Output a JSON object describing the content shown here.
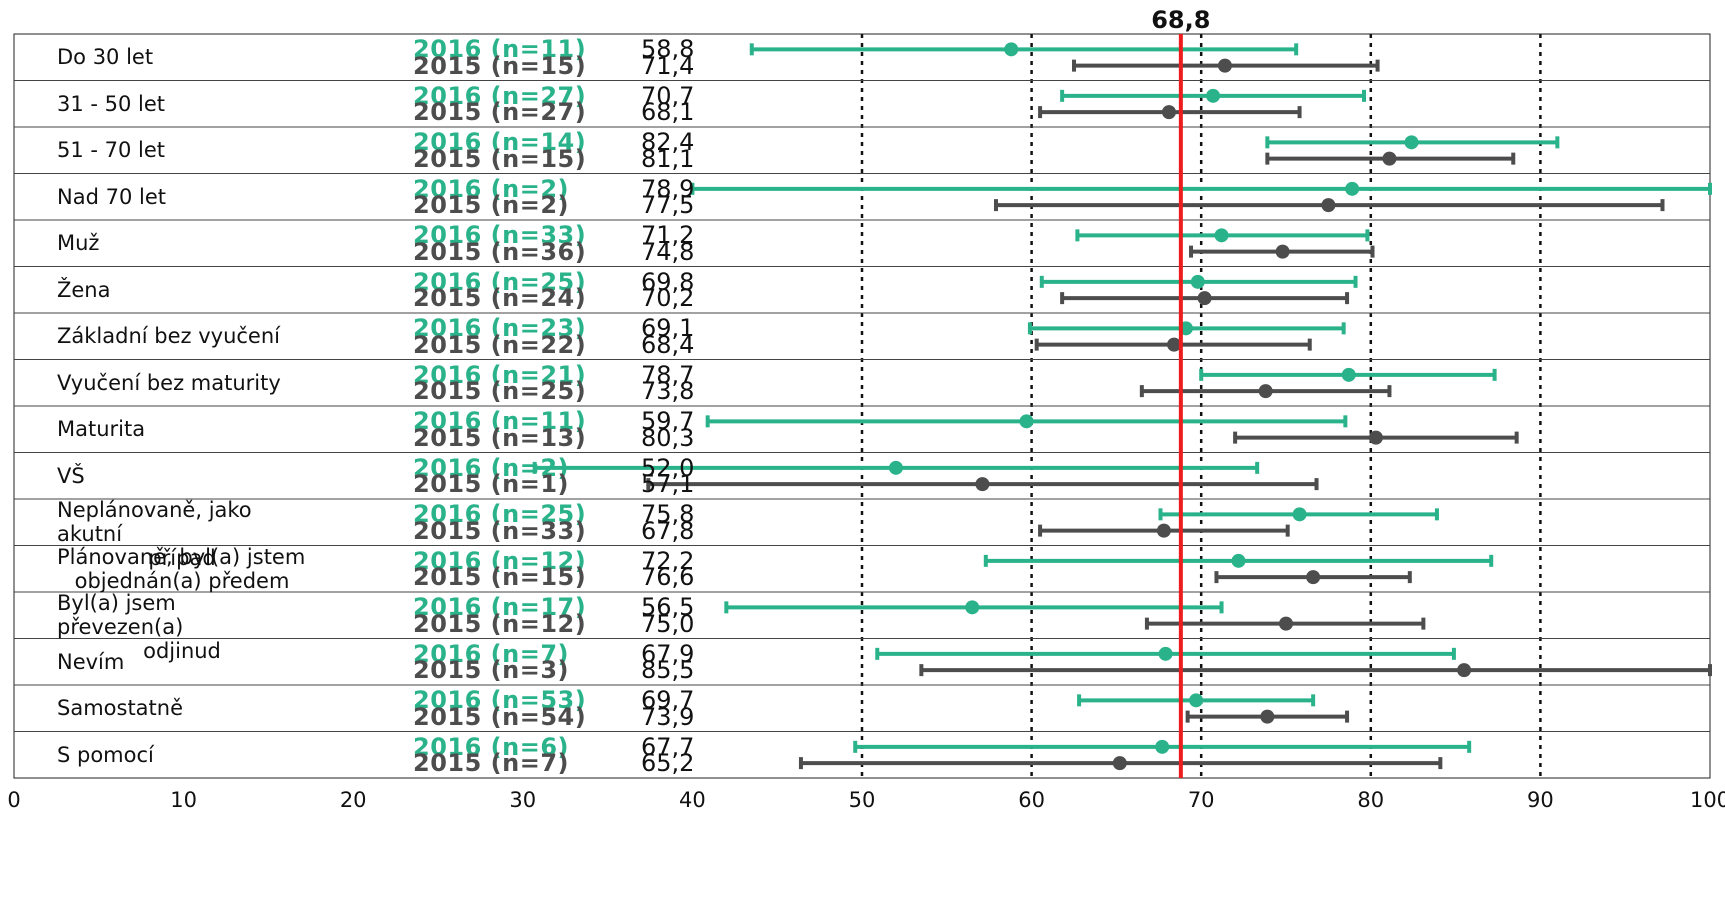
{
  "chart_data": {
    "type": "error-bar",
    "title": "",
    "xlim": [
      0,
      100
    ],
    "x_ticks": [
      "0",
      "10",
      "20",
      "30",
      "40",
      "50",
      "60",
      "70",
      "80",
      "90",
      "100"
    ],
    "gridlines_x": [
      50,
      60,
      70,
      80,
      90
    ],
    "reference_line": {
      "value": 68.8,
      "label": "68,8",
      "color": "#ee1c1c"
    },
    "colors": {
      "2016": "#2ab38a",
      "2015": "#4d4d4d"
    },
    "rows": [
      {
        "label": "Do 30 let",
        "y16": "2016 (n=11)",
        "v16": "58,8",
        "m16": 58.8,
        "lo16": 43.5,
        "hi16": 75.6,
        "y15": "2015 (n=15)",
        "v15": "71,4",
        "m15": 71.4,
        "lo15": 62.5,
        "hi15": 80.4
      },
      {
        "label": "31 - 50 let",
        "y16": "2016 (n=27)",
        "v16": "70,7",
        "m16": 70.7,
        "lo16": 61.8,
        "hi16": 79.6,
        "y15": "2015 (n=27)",
        "v15": "68,1",
        "m15": 68.1,
        "lo15": 60.5,
        "hi15": 75.8
      },
      {
        "label": "51 - 70 let",
        "y16": "2016 (n=14)",
        "v16": "82,4",
        "m16": 82.4,
        "lo16": 73.9,
        "hi16": 91.0,
        "y15": "2015 (n=15)",
        "v15": "81,1",
        "m15": 81.1,
        "lo15": 73.9,
        "hi15": 88.4
      },
      {
        "label": "Nad 70 let",
        "y16": "2016 (n=2)",
        "v16": "78,9",
        "m16": 78.9,
        "lo16": 40.0,
        "hi16": 100.0,
        "y15": "2015 (n=2)",
        "v15": "77,5",
        "m15": 77.5,
        "lo15": 57.9,
        "hi15": 97.2
      },
      {
        "label": "Muž",
        "y16": "2016 (n=33)",
        "v16": "71,2",
        "m16": 71.2,
        "lo16": 62.7,
        "hi16": 79.8,
        "y15": "2015 (n=36)",
        "v15": "74,8",
        "m15": 74.8,
        "lo15": 69.4,
        "hi15": 80.1
      },
      {
        "label": "Žena",
        "y16": "2016 (n=25)",
        "v16": "69,8",
        "m16": 69.8,
        "lo16": 60.6,
        "hi16": 79.1,
        "y15": "2015 (n=24)",
        "v15": "70,2",
        "m15": 70.2,
        "lo15": 61.8,
        "hi15": 78.6
      },
      {
        "label": "Základní bez vyučení",
        "y16": "2016 (n=23)",
        "v16": "69,1",
        "m16": 69.1,
        "lo16": 59.9,
        "hi16": 78.4,
        "y15": "2015 (n=22)",
        "v15": "68,4",
        "m15": 68.4,
        "lo15": 60.3,
        "hi15": 76.4
      },
      {
        "label": "Vyučení bez maturity",
        "y16": "2016 (n=21)",
        "v16": "78,7",
        "m16": 78.7,
        "lo16": 70.0,
        "hi16": 87.3,
        "y15": "2015 (n=25)",
        "v15": "73,8",
        "m15": 73.8,
        "lo15": 66.5,
        "hi15": 81.1
      },
      {
        "label": "Maturita",
        "y16": "2016 (n=11)",
        "v16": "59,7",
        "m16": 59.7,
        "lo16": 40.9,
        "hi16": 78.5,
        "y15": "2015 (n=13)",
        "v15": "80,3",
        "m15": 80.3,
        "lo15": 72.0,
        "hi15": 88.6
      },
      {
        "label": "VŠ",
        "y16": "2016 (n=2)",
        "v16": "52,0",
        "m16": 52.0,
        "lo16": 30.7,
        "hi16": 73.3,
        "y15": "2015 (n=1)",
        "v15": "57,1",
        "m15": 57.1,
        "lo15": 37.4,
        "hi15": 76.8
      },
      {
        "label": "Neplánovaně, jako akutní případ",
        "label_lines": [
          "Neplánovaně, jako akutní",
          "případ"
        ],
        "y16": "2016 (n=25)",
        "v16": "75,8",
        "m16": 75.8,
        "lo16": 67.6,
        "hi16": 83.9,
        "y15": "2015 (n=33)",
        "v15": "67,8",
        "m15": 67.8,
        "lo15": 60.5,
        "hi15": 75.1
      },
      {
        "label": "Plánovaně, byl(a) jstem objednán(a) předem",
        "label_lines": [
          "Plánovaně, byl(a) jstem",
          "objednán(a) předem"
        ],
        "y16": "2016 (n=12)",
        "v16": "72,2",
        "m16": 72.2,
        "lo16": 57.3,
        "hi16": 87.1,
        "y15": "2015 (n=15)",
        "v15": "76,6",
        "m15": 76.6,
        "lo15": 70.9,
        "hi15": 82.3
      },
      {
        "label": "Byl(a) jsem převezen(a) odjinud",
        "label_lines": [
          "Byl(a) jsem převezen(a)",
          "odjinud"
        ],
        "y16": "2016 (n=17)",
        "v16": "56,5",
        "m16": 56.5,
        "lo16": 42.0,
        "hi16": 71.2,
        "y15": "2015 (n=12)",
        "v15": "75,0",
        "m15": 75.0,
        "lo15": 66.8,
        "hi15": 83.1
      },
      {
        "label": "Nevím",
        "y16": "2016 (n=7)",
        "v16": "67,9",
        "m16": 67.9,
        "lo16": 50.9,
        "hi16": 84.9,
        "y15": "2015 (n=3)",
        "v15": "85,5",
        "m15": 85.5,
        "lo15": 53.5,
        "hi15": 100.0
      },
      {
        "label": "Samostatně",
        "y16": "2016 (n=53)",
        "v16": "69,7",
        "m16": 69.7,
        "lo16": 62.8,
        "hi16": 76.6,
        "y15": "2015 (n=54)",
        "v15": "73,9",
        "m15": 73.9,
        "lo15": 69.2,
        "hi15": 78.6
      },
      {
        "label": "S pomocí",
        "y16": "2016 (n=6)",
        "v16": "67,7",
        "m16": 67.7,
        "lo16": 49.6,
        "hi16": 85.8,
        "y15": "2015 (n=7)",
        "v15": "65,2",
        "m15": 65.2,
        "lo15": 46.4,
        "hi15": 84.1
      }
    ]
  }
}
